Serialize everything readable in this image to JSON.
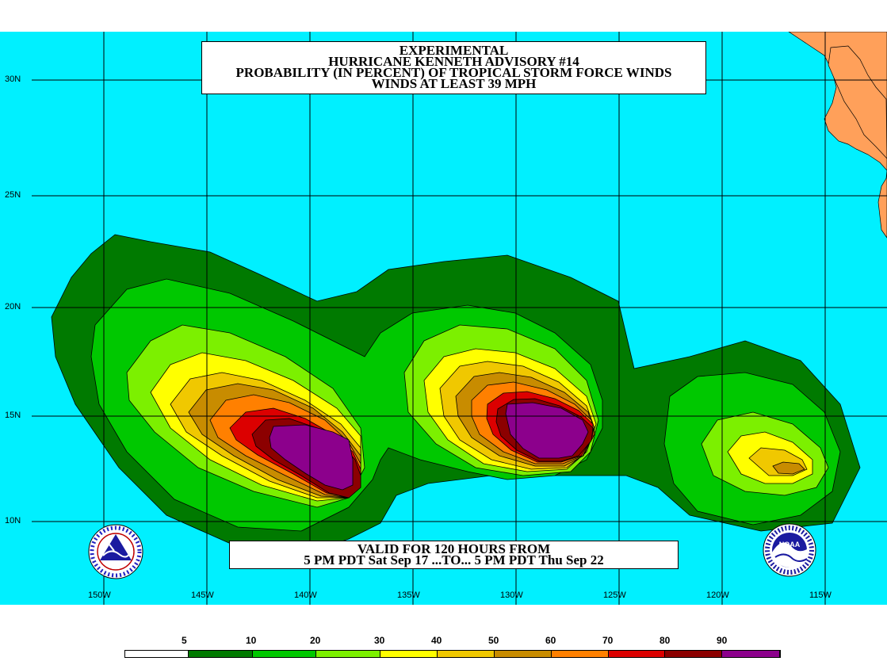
{
  "title": {
    "line1": "EXPERIMENTAL",
    "line2": "HURRICANE KENNETH ADVISORY #14",
    "line3": "PROBABILITY (IN PERCENT) OF TROPICAL STORM FORCE WINDS",
    "line4": "WINDS AT LEAST 39 MPH"
  },
  "valid": {
    "line1": "VALID FOR 120 HOURS FROM",
    "line2": "5 PM PDT Sat Sep 17 ...TO... 5 PM PDT Thu Sep 22"
  },
  "lat_labels": [
    "30N",
    "25N",
    "20N",
    "15N",
    "10N"
  ],
  "lon_labels": [
    "150W",
    "145W",
    "140W",
    "135W",
    "130W",
    "125W",
    "120W",
    "115W"
  ],
  "legend": {
    "values": [
      "5",
      "10",
      "20",
      "30",
      "40",
      "50",
      "60",
      "70",
      "80",
      "90"
    ],
    "colors": [
      "#ffffff",
      "#007a00",
      "#00c800",
      "#7cf000",
      "#ffff00",
      "#f0c800",
      "#c88c00",
      "#ff8000",
      "#dc0000",
      "#8c0000",
      "#8c008c"
    ]
  },
  "colors": {
    "ocean": "#00f0ff",
    "land": "#ffa05a",
    "grid": "#000000"
  },
  "icons": {
    "nws_logo": "nws-logo-icon",
    "noaa_logo": "noaa-logo-icon",
    "noaa_text": "NOAA"
  }
}
